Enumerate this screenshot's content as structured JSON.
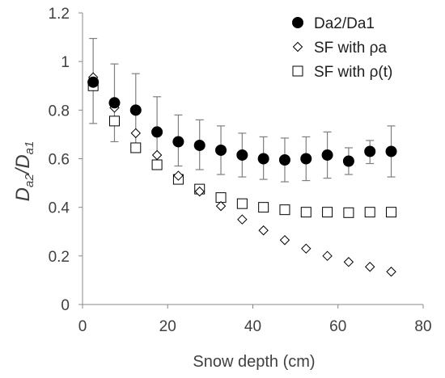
{
  "chart_data": {
    "type": "scatter",
    "xlabel": "Snow depth (cm)",
    "ylabel_main": "D",
    "ylabel_sub1": "a2",
    "ylabel_slash": "/D",
    "ylabel_sub2": "a1",
    "xlim": [
      0,
      80
    ],
    "ylim": [
      0,
      1.2
    ],
    "xticks": [
      0,
      20,
      40,
      60,
      80
    ],
    "yticks": [
      0,
      0.2,
      0.4,
      0.6,
      0.8,
      1,
      1.2
    ],
    "xtick_labels": [
      "0",
      "20",
      "40",
      "60",
      "80"
    ],
    "ytick_labels": [
      "0",
      "0.2",
      "0.4",
      "0.6",
      "0.8",
      "1",
      "1.2"
    ],
    "grid": false,
    "legend_position": "top-right",
    "x": [
      2.5,
      7.5,
      12.5,
      17.5,
      22.5,
      27.5,
      32.5,
      37.5,
      42.5,
      47.5,
      52.5,
      57.5,
      62.5,
      67.5,
      72.5
    ],
    "series": [
      {
        "name": "Da2/Da1",
        "marker": "filled-circle",
        "color": "#000000",
        "values": [
          0.915,
          0.83,
          0.8,
          0.71,
          0.67,
          0.655,
          0.635,
          0.615,
          0.6,
          0.595,
          0.6,
          0.615,
          0.59,
          0.63,
          0.63
        ],
        "error_low": [
          0.745,
          0.67,
          0.65,
          0.565,
          0.57,
          0.555,
          0.535,
          0.525,
          0.515,
          0.505,
          0.51,
          0.52,
          0.535,
          0.58,
          0.525
        ],
        "error_high": [
          1.095,
          0.99,
          0.95,
          0.855,
          0.78,
          0.76,
          0.735,
          0.705,
          0.69,
          0.685,
          0.69,
          0.71,
          0.645,
          0.675,
          0.735
        ]
      },
      {
        "name": "SF with ρa",
        "marker": "open-diamond",
        "color": "#000000",
        "values": [
          0.935,
          0.81,
          0.705,
          0.615,
          0.53,
          0.465,
          0.405,
          0.35,
          0.305,
          0.265,
          0.23,
          0.2,
          0.175,
          0.155,
          0.135
        ]
      },
      {
        "name": "SF with ρ(t)",
        "marker": "open-square",
        "color": "#000000",
        "values": [
          0.9,
          0.755,
          0.645,
          0.575,
          0.515,
          0.475,
          0.44,
          0.415,
          0.4,
          0.39,
          0.38,
          0.38,
          0.378,
          0.38,
          0.38
        ]
      }
    ]
  }
}
